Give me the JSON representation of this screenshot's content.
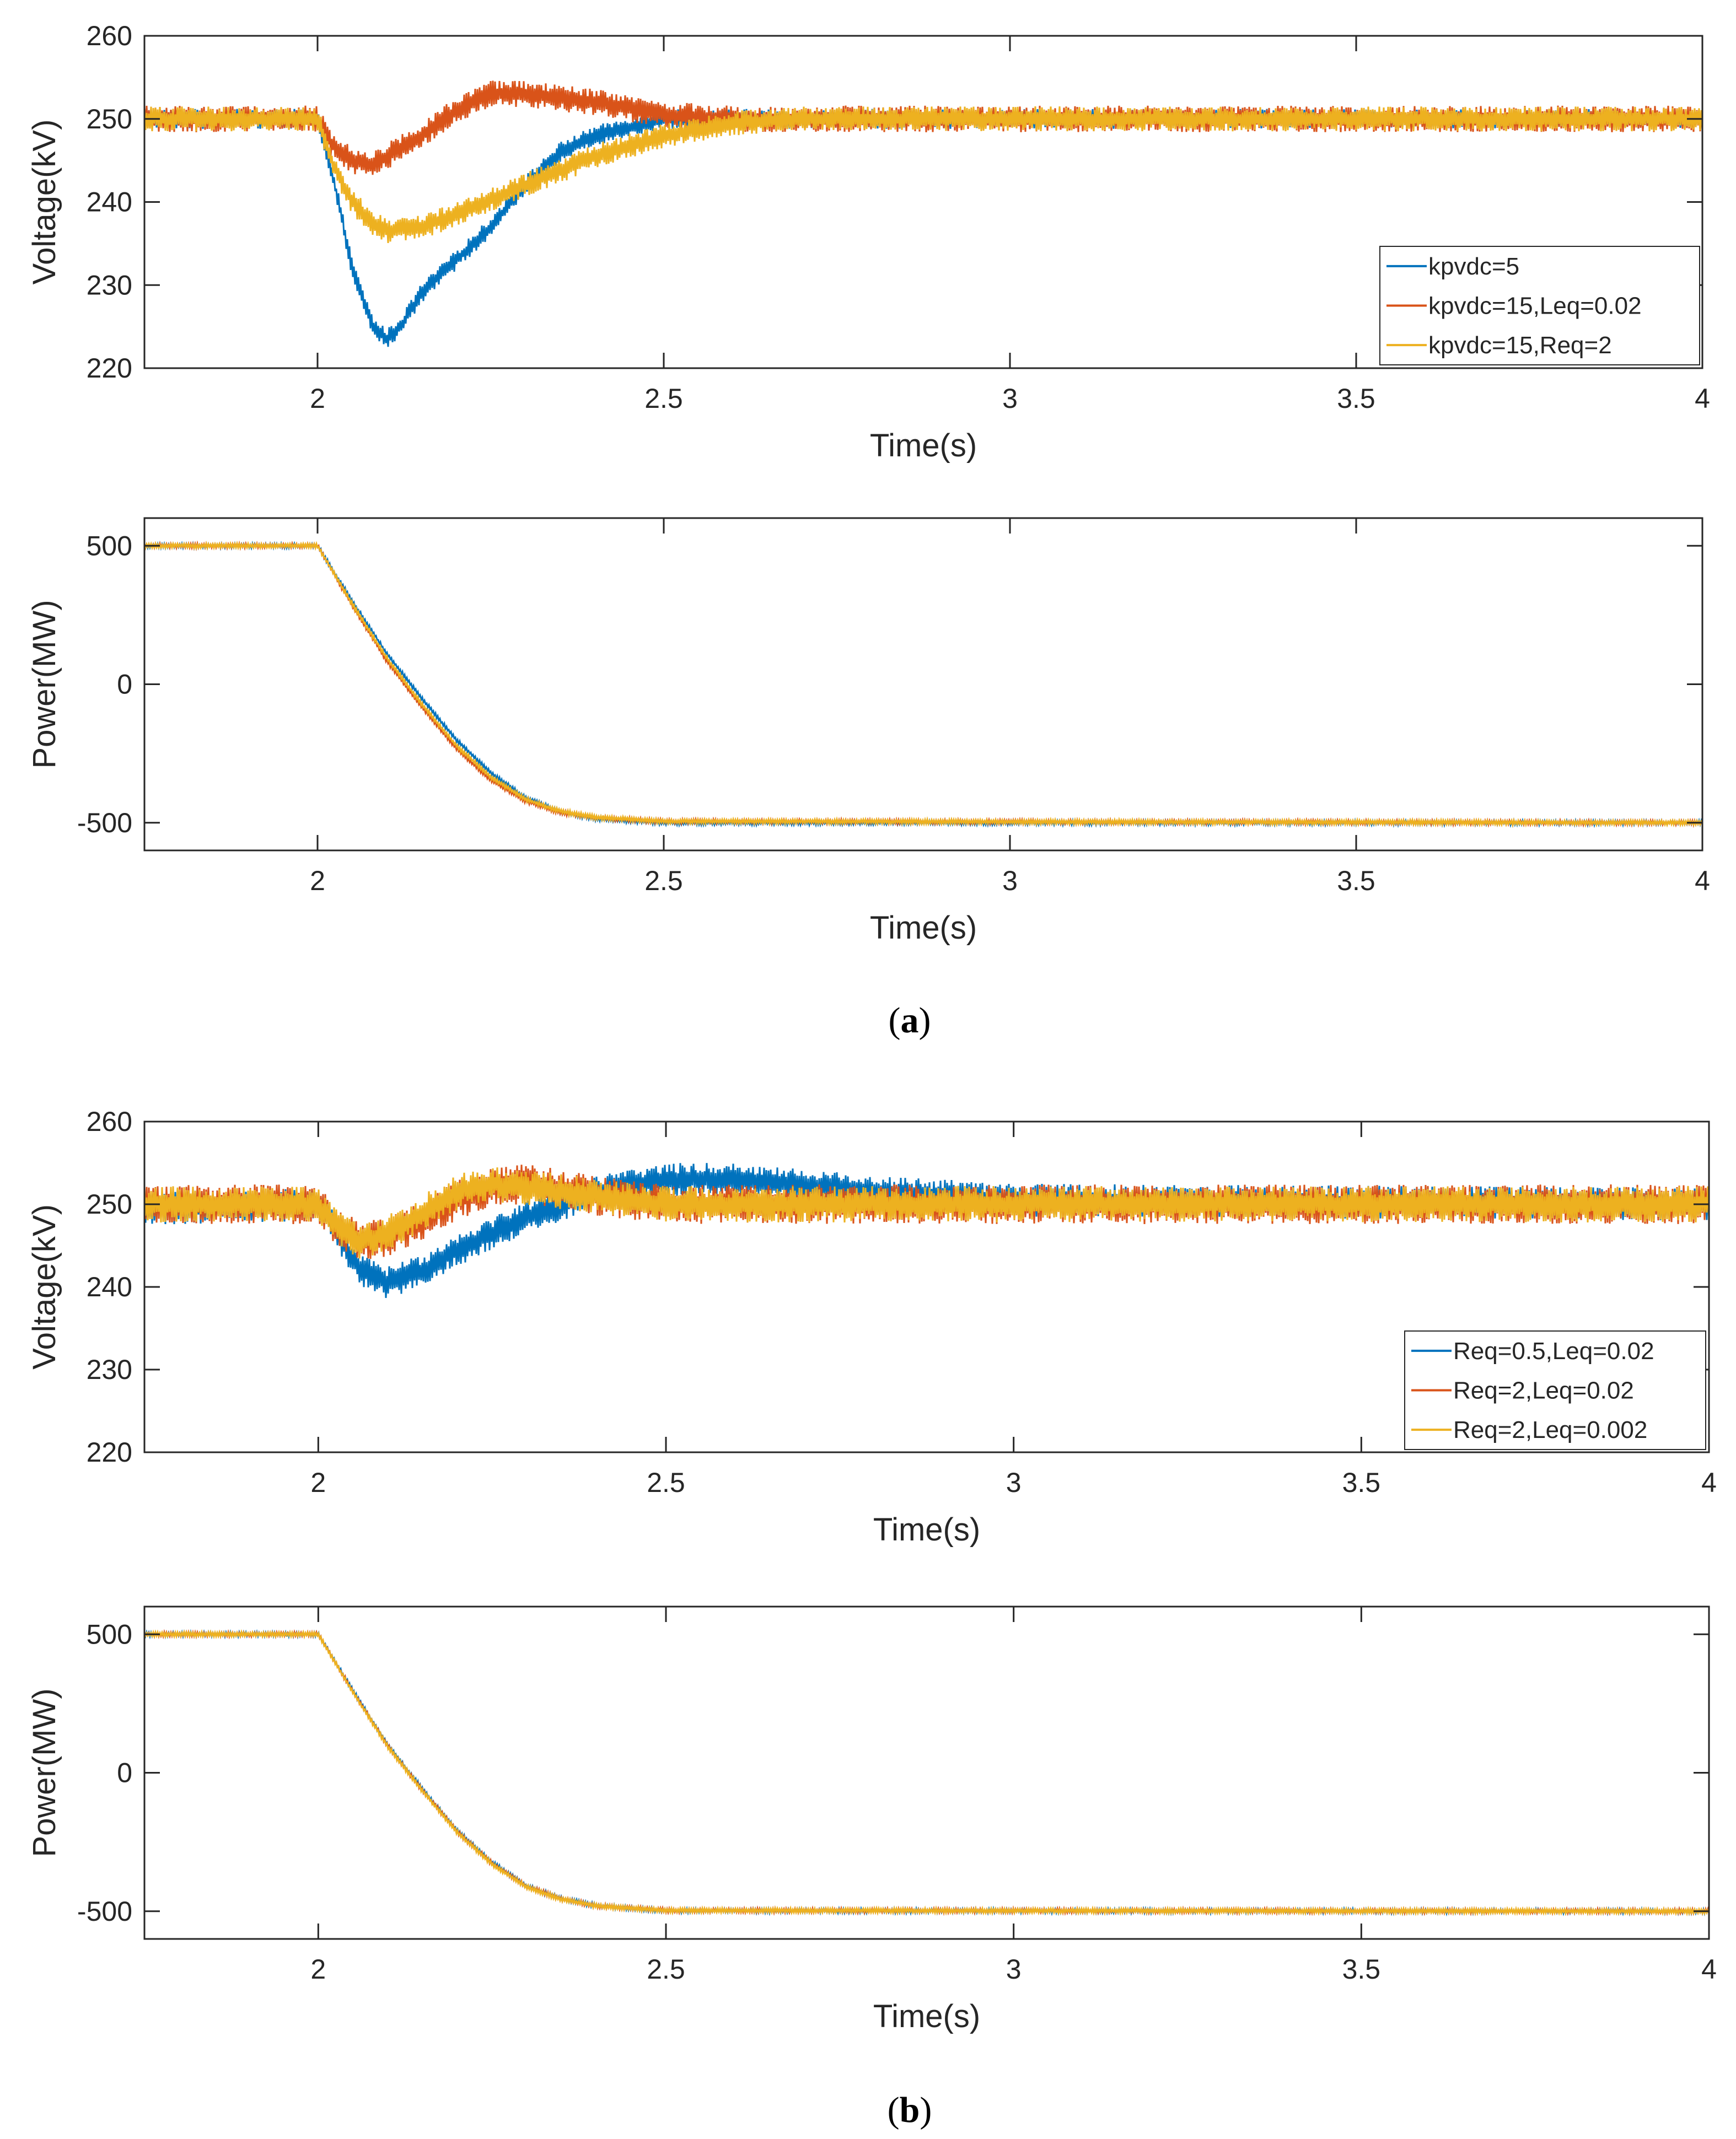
{
  "colors": {
    "series1": "#0072BD",
    "series2": "#D95319",
    "series3": "#EDB120",
    "axis": "#262626"
  },
  "captions": [
    {
      "open": "(",
      "letter": "a",
      "close": ")"
    },
    {
      "open": "(",
      "letter": "b",
      "close": ")"
    }
  ],
  "chart_data": [
    {
      "type": "line",
      "panel": "a-voltage",
      "title": "",
      "xlabel": "Time(s)",
      "ylabel": "Voltage(kV)",
      "xlim": [
        1.75,
        4
      ],
      "ylim": [
        220,
        260
      ],
      "xticks": [
        2,
        2.5,
        3,
        3.5,
        4
      ],
      "xtick_labels": [
        "2",
        "2.5",
        "3",
        "3.5",
        "4"
      ],
      "yticks": [
        220,
        230,
        240,
        250,
        260
      ],
      "ytick_labels": [
        "220",
        "230",
        "240",
        "250",
        "260"
      ],
      "legend": "bottom-right",
      "series": [
        {
          "name": "kpvdc=5",
          "color": "#0072BD",
          "noise": 1.2,
          "x": [
            1.75,
            2.0,
            2.02,
            2.05,
            2.08,
            2.1,
            2.12,
            2.15,
            2.2,
            2.25,
            2.3,
            2.35,
            2.4,
            2.45,
            2.5,
            2.6,
            4.0
          ],
          "y": [
            250,
            250,
            244,
            232,
            225,
            223.5,
            225,
            229,
            233,
            237,
            242,
            246,
            248,
            249,
            250,
            250,
            250
          ]
        },
        {
          "name": "kpvdc=15,Leq=0.02",
          "color": "#D95319",
          "noise": 1.6,
          "x": [
            1.75,
            2.0,
            2.02,
            2.05,
            2.08,
            2.1,
            2.15,
            2.2,
            2.25,
            2.3,
            2.4,
            2.5,
            2.6,
            4.0
          ],
          "y": [
            250,
            250,
            247,
            245,
            244.5,
            245.5,
            248,
            251,
            253,
            253,
            252,
            250.5,
            250,
            250
          ]
        },
        {
          "name": "kpvdc=15,Req=2",
          "color": "#EDB120",
          "noise": 1.5,
          "x": [
            1.75,
            2.0,
            2.02,
            2.05,
            2.08,
            2.1,
            2.15,
            2.2,
            2.3,
            2.4,
            2.5,
            2.6,
            2.7,
            4.0
          ],
          "y": [
            250,
            250,
            245,
            240,
            237.5,
            236.5,
            237,
            238.5,
            242,
            245.5,
            248,
            249.5,
            250,
            250
          ]
        }
      ]
    },
    {
      "type": "line",
      "panel": "a-power",
      "title": "",
      "xlabel": "Time(s)",
      "ylabel": "Power(MW)",
      "xlim": [
        1.75,
        4
      ],
      "ylim": [
        -600,
        600
      ],
      "xticks": [
        2,
        2.5,
        3,
        3.5,
        4
      ],
      "xtick_labels": [
        "2",
        "2.5",
        "3",
        "3.5",
        "4"
      ],
      "yticks": [
        -500,
        0,
        500
      ],
      "ytick_labels": [
        "-500",
        "0",
        "500"
      ],
      "legend": "none",
      "series": [
        {
          "name": "kpvdc=5",
          "color": "#0072BD",
          "noise": 8,
          "x": [
            1.75,
            2.0,
            2.05,
            2.1,
            2.15,
            2.2,
            2.25,
            2.3,
            2.35,
            2.4,
            2.5,
            4.0
          ],
          "y": [
            500,
            500,
            300,
            110,
            -50,
            -200,
            -320,
            -410,
            -460,
            -485,
            -500,
            -500
          ]
        },
        {
          "name": "kpvdc=15,Leq=0.02",
          "color": "#D95319",
          "noise": 8,
          "x": [
            1.75,
            2.0,
            2.05,
            2.1,
            2.15,
            2.2,
            2.25,
            2.3,
            2.35,
            2.4,
            2.5,
            4.0
          ],
          "y": [
            500,
            500,
            285,
            85,
            -80,
            -230,
            -345,
            -420,
            -462,
            -482,
            -495,
            -500
          ]
        },
        {
          "name": "kpvdc=15,Req=2",
          "color": "#EDB120",
          "noise": 8,
          "x": [
            1.75,
            2.0,
            2.05,
            2.1,
            2.15,
            2.2,
            2.25,
            2.3,
            2.35,
            2.4,
            2.5,
            4.0
          ],
          "y": [
            500,
            500,
            290,
            95,
            -70,
            -220,
            -335,
            -415,
            -458,
            -480,
            -495,
            -500
          ]
        }
      ]
    },
    {
      "type": "line",
      "panel": "b-voltage",
      "title": "",
      "xlabel": "Time(s)",
      "ylabel": "Voltage(kV)",
      "xlim": [
        1.75,
        4
      ],
      "ylim": [
        220,
        260
      ],
      "xticks": [
        2,
        2.5,
        3,
        3.5,
        4
      ],
      "xtick_labels": [
        "2",
        "2.5",
        "3",
        "3.5",
        "4"
      ],
      "yticks": [
        220,
        230,
        240,
        250,
        260
      ],
      "ytick_labels": [
        "220",
        "230",
        "240",
        "250",
        "260"
      ],
      "legend": "bottom-right",
      "series": [
        {
          "name": "Req=0.5,Leq=0.02",
          "color": "#0072BD",
          "noise": 2.0,
          "x": [
            1.75,
            2.0,
            2.03,
            2.06,
            2.1,
            2.15,
            2.2,
            2.3,
            2.4,
            2.5,
            2.6,
            2.8,
            3.0,
            4.0
          ],
          "y": [
            249.5,
            250,
            246,
            242,
            240.5,
            242,
            244.5,
            248.5,
            251.5,
            253,
            253,
            251.5,
            250.5,
            250
          ]
        },
        {
          "name": "Req=2,Leq=0.02",
          "color": "#D95319",
          "noise": 2.4,
          "x": [
            1.75,
            2.0,
            2.03,
            2.06,
            2.1,
            2.15,
            2.2,
            2.25,
            2.3,
            2.4,
            2.5,
            4.0
          ],
          "y": [
            250,
            250,
            247,
            245.5,
            246,
            248,
            250.5,
            252,
            252.5,
            251,
            250,
            250
          ]
        },
        {
          "name": "Req=2,Leq=0.002",
          "color": "#EDB120",
          "noise": 2.2,
          "x": [
            1.75,
            2.0,
            2.03,
            2.06,
            2.1,
            2.15,
            2.2,
            2.25,
            2.3,
            2.4,
            2.5,
            4.0
          ],
          "y": [
            250,
            250,
            247,
            245.5,
            246.5,
            249,
            251.5,
            252.5,
            252,
            251,
            250,
            250
          ]
        }
      ]
    },
    {
      "type": "line",
      "panel": "b-power",
      "title": "",
      "xlabel": "Time(s)",
      "ylabel": "Power(MW)",
      "xlim": [
        1.75,
        4
      ],
      "ylim": [
        -600,
        600
      ],
      "xticks": [
        2,
        2.5,
        3,
        3.5,
        4
      ],
      "xtick_labels": [
        "2",
        "2.5",
        "3",
        "3.5",
        "4"
      ],
      "yticks": [
        -500,
        0,
        500
      ],
      "ytick_labels": [
        "-500",
        "0",
        "500"
      ],
      "legend": "none",
      "series": [
        {
          "name": "Req=0.5,Leq=0.02",
          "color": "#0072BD",
          "noise": 8,
          "x": [
            1.75,
            2.0,
            2.05,
            2.1,
            2.15,
            2.2,
            2.25,
            2.3,
            2.35,
            2.4,
            2.5,
            4.0
          ],
          "y": [
            500,
            500,
            295,
            100,
            -60,
            -210,
            -325,
            -410,
            -455,
            -480,
            -498,
            -500
          ]
        },
        {
          "name": "Req=2,Leq=0.02",
          "color": "#D95319",
          "noise": 8,
          "x": [
            1.75,
            2.0,
            2.05,
            2.1,
            2.15,
            2.2,
            2.25,
            2.3,
            2.35,
            2.4,
            2.5,
            4.0
          ],
          "y": [
            500,
            500,
            292,
            96,
            -64,
            -214,
            -328,
            -412,
            -456,
            -481,
            -497,
            -500
          ]
        },
        {
          "name": "Req=2,Leq=0.002",
          "color": "#EDB120",
          "noise": 8,
          "x": [
            1.75,
            2.0,
            2.05,
            2.1,
            2.15,
            2.2,
            2.25,
            2.3,
            2.35,
            2.4,
            2.5,
            4.0
          ],
          "y": [
            500,
            500,
            290,
            94,
            -66,
            -216,
            -330,
            -413,
            -457,
            -481,
            -497,
            -500
          ]
        }
      ]
    }
  ]
}
